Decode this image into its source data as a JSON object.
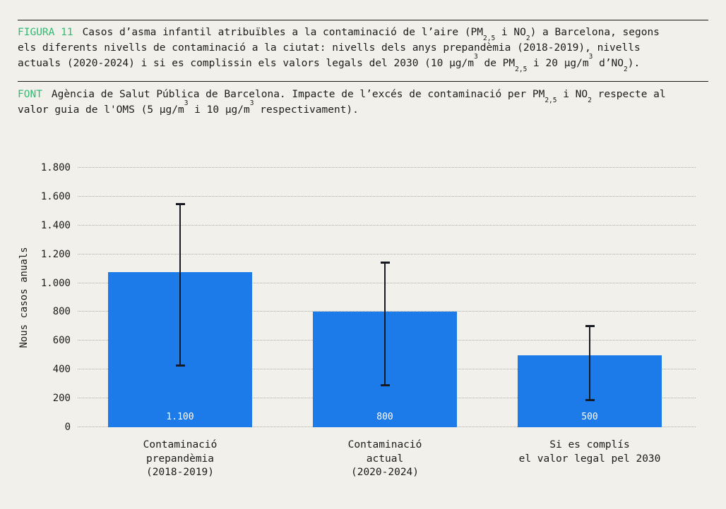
{
  "colors": {
    "background": "#f2f0eb",
    "accent_green": "#2fbc72",
    "bar_blue": "#1c7be8",
    "error_bar": "#171a20",
    "gridline": "#aeaca6",
    "text": "#1c1b1a",
    "bar_value_text": "#ffffff"
  },
  "figure": {
    "label": "FIGURA 11",
    "title_segments": [
      {
        "t": "Casos d’asma infantil atribuïbles a la contaminació de l’aire (PM"
      },
      {
        "t": "2,5",
        "sub": true
      },
      {
        "t": " i NO"
      },
      {
        "t": "2",
        "sub": true
      },
      {
        "t": ") a Barcelona, segons",
        "br": true
      },
      {
        "t": "els diferents nivells de contaminació a la ciutat: nivells dels anys prepandèmia (2018-2019), nivells",
        "br": true
      },
      {
        "t": "actuals (2020-2024) i si es complissin els valors legals del 2030 (10 µg/m"
      },
      {
        "t": "3",
        "sup": true
      },
      {
        "t": " de PM"
      },
      {
        "t": "2,5",
        "sub": true
      },
      {
        "t": " i 20 µg/m"
      },
      {
        "t": "3",
        "sup": true
      },
      {
        "t": " d’NO"
      },
      {
        "t": "2",
        "sub": true
      },
      {
        "t": ")."
      }
    ]
  },
  "source": {
    "label": "FONT",
    "segments": [
      {
        "t": "Agència de Salut Pública de Barcelona. Impacte de l’excés de contaminació per PM"
      },
      {
        "t": "2,5",
        "sub": true
      },
      {
        "t": " i NO"
      },
      {
        "t": "2",
        "sub": true
      },
      {
        "t": " respecte al",
        "br": true
      },
      {
        "t": "valor guia de l'OMS (5 µg/m"
      },
      {
        "t": "3",
        "sup": true
      },
      {
        "t": " i 10 µg/m"
      },
      {
        "t": "3",
        "sup": true
      },
      {
        "t": " respectivament)."
      }
    ]
  },
  "chart_data": {
    "type": "bar",
    "ylabel": "Nous casos anuals",
    "ylim": [
      0,
      1800
    ],
    "ymax": 1800,
    "ytick_step": 200,
    "ytick_labels": [
      "0",
      "200",
      "400",
      "600",
      "800",
      "1.000",
      "1.200",
      "1.400",
      "1.600",
      "1.800"
    ],
    "grid": true,
    "legend": "none",
    "categories": [
      "Contaminació prepandèmia (2018-2019)",
      "Contaminació actual (2020-2024)",
      "Si es complís el valor legal pel 2030"
    ],
    "bars": [
      {
        "label_lines": [
          "Contaminació",
          "prepandèmia",
          "(2018-2019)"
        ],
        "value": 1075,
        "display": "1.100",
        "err_low": 430,
        "err_high": 1550
      },
      {
        "label_lines": [
          "Contaminació",
          "actual",
          "(2020-2024)"
        ],
        "value": 800,
        "display": "800",
        "err_low": 290,
        "err_high": 1140
      },
      {
        "label_lines": [
          "Si es complís",
          "el valor legal pel 2030"
        ],
        "value": 500,
        "display": "500",
        "err_low": 190,
        "err_high": 700
      }
    ]
  }
}
